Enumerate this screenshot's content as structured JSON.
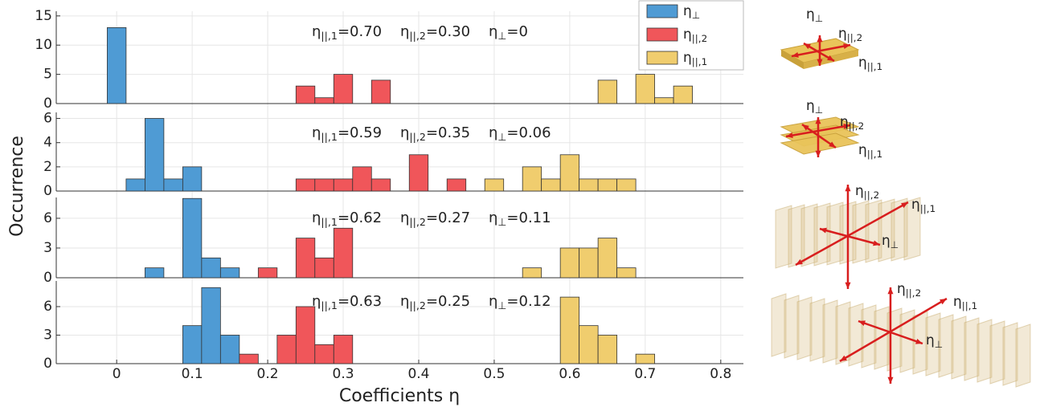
{
  "chart_data": {
    "type": "histogram",
    "xlabel": "Coefficients η",
    "ylabel": "Occurrence",
    "xlim": [
      -0.08,
      0.83
    ],
    "xticks": [
      0,
      0.1,
      0.2,
      0.3,
      0.4,
      0.5,
      0.6,
      0.7,
      0.8
    ],
    "grid": true,
    "legend": "top-right",
    "series": [
      {
        "name": "η⊥",
        "color": "#4f9bd4"
      },
      {
        "name": "η||,2",
        "color": "#f0565a"
      },
      {
        "name": "η||,1",
        "color": "#f0cd6e"
      }
    ],
    "panels": [
      {
        "ylim": [
          0,
          15.8
        ],
        "yticks": [
          0,
          5,
          10,
          15
        ],
        "annotation": [
          "η||,1=0.70",
          "η||,2=0.30",
          "η⊥=0"
        ],
        "histograms": [
          {
            "bins": [
              -0.0125,
              0.0125
            ],
            "counts": [
              13
            ]
          },
          {
            "bins": [
              0.2375,
              0.2625,
              0.2875,
              0.3125,
              0.3375,
              0.3625
            ],
            "counts": [
              3,
              1,
              5,
              0,
              4
            ]
          },
          {
            "bins": [
              0.6375,
              0.6625,
              0.6875,
              0.7125,
              0.7375,
              0.7625
            ],
            "counts": [
              4,
              0,
              5,
              1,
              3
            ]
          }
        ]
      },
      {
        "ylim": [
          0,
          6.5
        ],
        "yticks": [
          0,
          2,
          4,
          6
        ],
        "annotation": [
          "η||,1=0.59",
          "η||,2=0.35",
          "η⊥=0.06"
        ],
        "histograms": [
          {
            "bins": [
              0.0125,
              0.0375,
              0.0625,
              0.0875,
              0.1125
            ],
            "counts": [
              1,
              6,
              1,
              2
            ]
          },
          {
            "bins": [
              0.2375,
              0.2625,
              0.2875,
              0.3125,
              0.3375,
              0.3625,
              0.3875,
              0.4125,
              0.4375,
              0.4625
            ],
            "counts": [
              1,
              1,
              1,
              2,
              1,
              0,
              3,
              0,
              1
            ]
          },
          {
            "bins": [
              0.4875,
              0.5125,
              0.5375,
              0.5625,
              0.5875,
              0.6125,
              0.6375,
              0.6625,
              0.6875
            ],
            "counts": [
              1,
              0,
              2,
              1,
              3,
              1,
              1,
              1
            ]
          }
        ]
      },
      {
        "ylim": [
          0,
          8.1
        ],
        "yticks": [
          0,
          3,
          6
        ],
        "annotation": [
          "η||,1=0.62",
          "η||,2=0.27",
          "η⊥=0.11"
        ],
        "histograms": [
          {
            "bins": [
              0.0375,
              0.0625,
              0.0875,
              0.1125,
              0.1375,
              0.1625
            ],
            "counts": [
              1,
              0,
              8,
              2,
              1
            ]
          },
          {
            "bins": [
              0.1875,
              0.2125,
              0.2375,
              0.2625,
              0.2875,
              0.3125
            ],
            "counts": [
              1,
              0,
              4,
              2,
              5
            ]
          },
          {
            "bins": [
              0.5375,
              0.5625,
              0.5875,
              0.6125,
              0.6375,
              0.6625,
              0.6875
            ],
            "counts": [
              1,
              0,
              3,
              3,
              4,
              1
            ]
          }
        ]
      },
      {
        "ylim": [
          0,
          8.7
        ],
        "yticks": [
          0,
          3,
          6
        ],
        "annotation": [
          "η||,1=0.63",
          "η||,2=0.25",
          "η⊥=0.12"
        ],
        "histograms": [
          {
            "bins": [
              0.0875,
              0.1125,
              0.1375,
              0.1625
            ],
            "counts": [
              4,
              8,
              3
            ]
          },
          {
            "bins": [
              0.1625,
              0.1875,
              0.2125,
              0.2375,
              0.2625,
              0.2875,
              0.3125
            ],
            "counts": [
              1,
              0,
              3,
              6,
              2,
              3
            ]
          },
          {
            "bins": [
              0.5875,
              0.6125,
              0.6375,
              0.6625,
              0.6875,
              0.7125
            ],
            "counts": [
              7,
              4,
              3,
              0,
              1
            ]
          }
        ]
      }
    ]
  },
  "illustrations": [
    {
      "labels": [
        "η⊥",
        "η||,2",
        "η||,1"
      ]
    },
    {
      "labels": [
        "η⊥",
        "η||,2",
        "η||,1"
      ]
    },
    {
      "labels": [
        "η||,2",
        "η||,1",
        "η⊥"
      ]
    },
    {
      "labels": [
        "η||,2",
        "η||,1",
        "η⊥"
      ]
    }
  ]
}
